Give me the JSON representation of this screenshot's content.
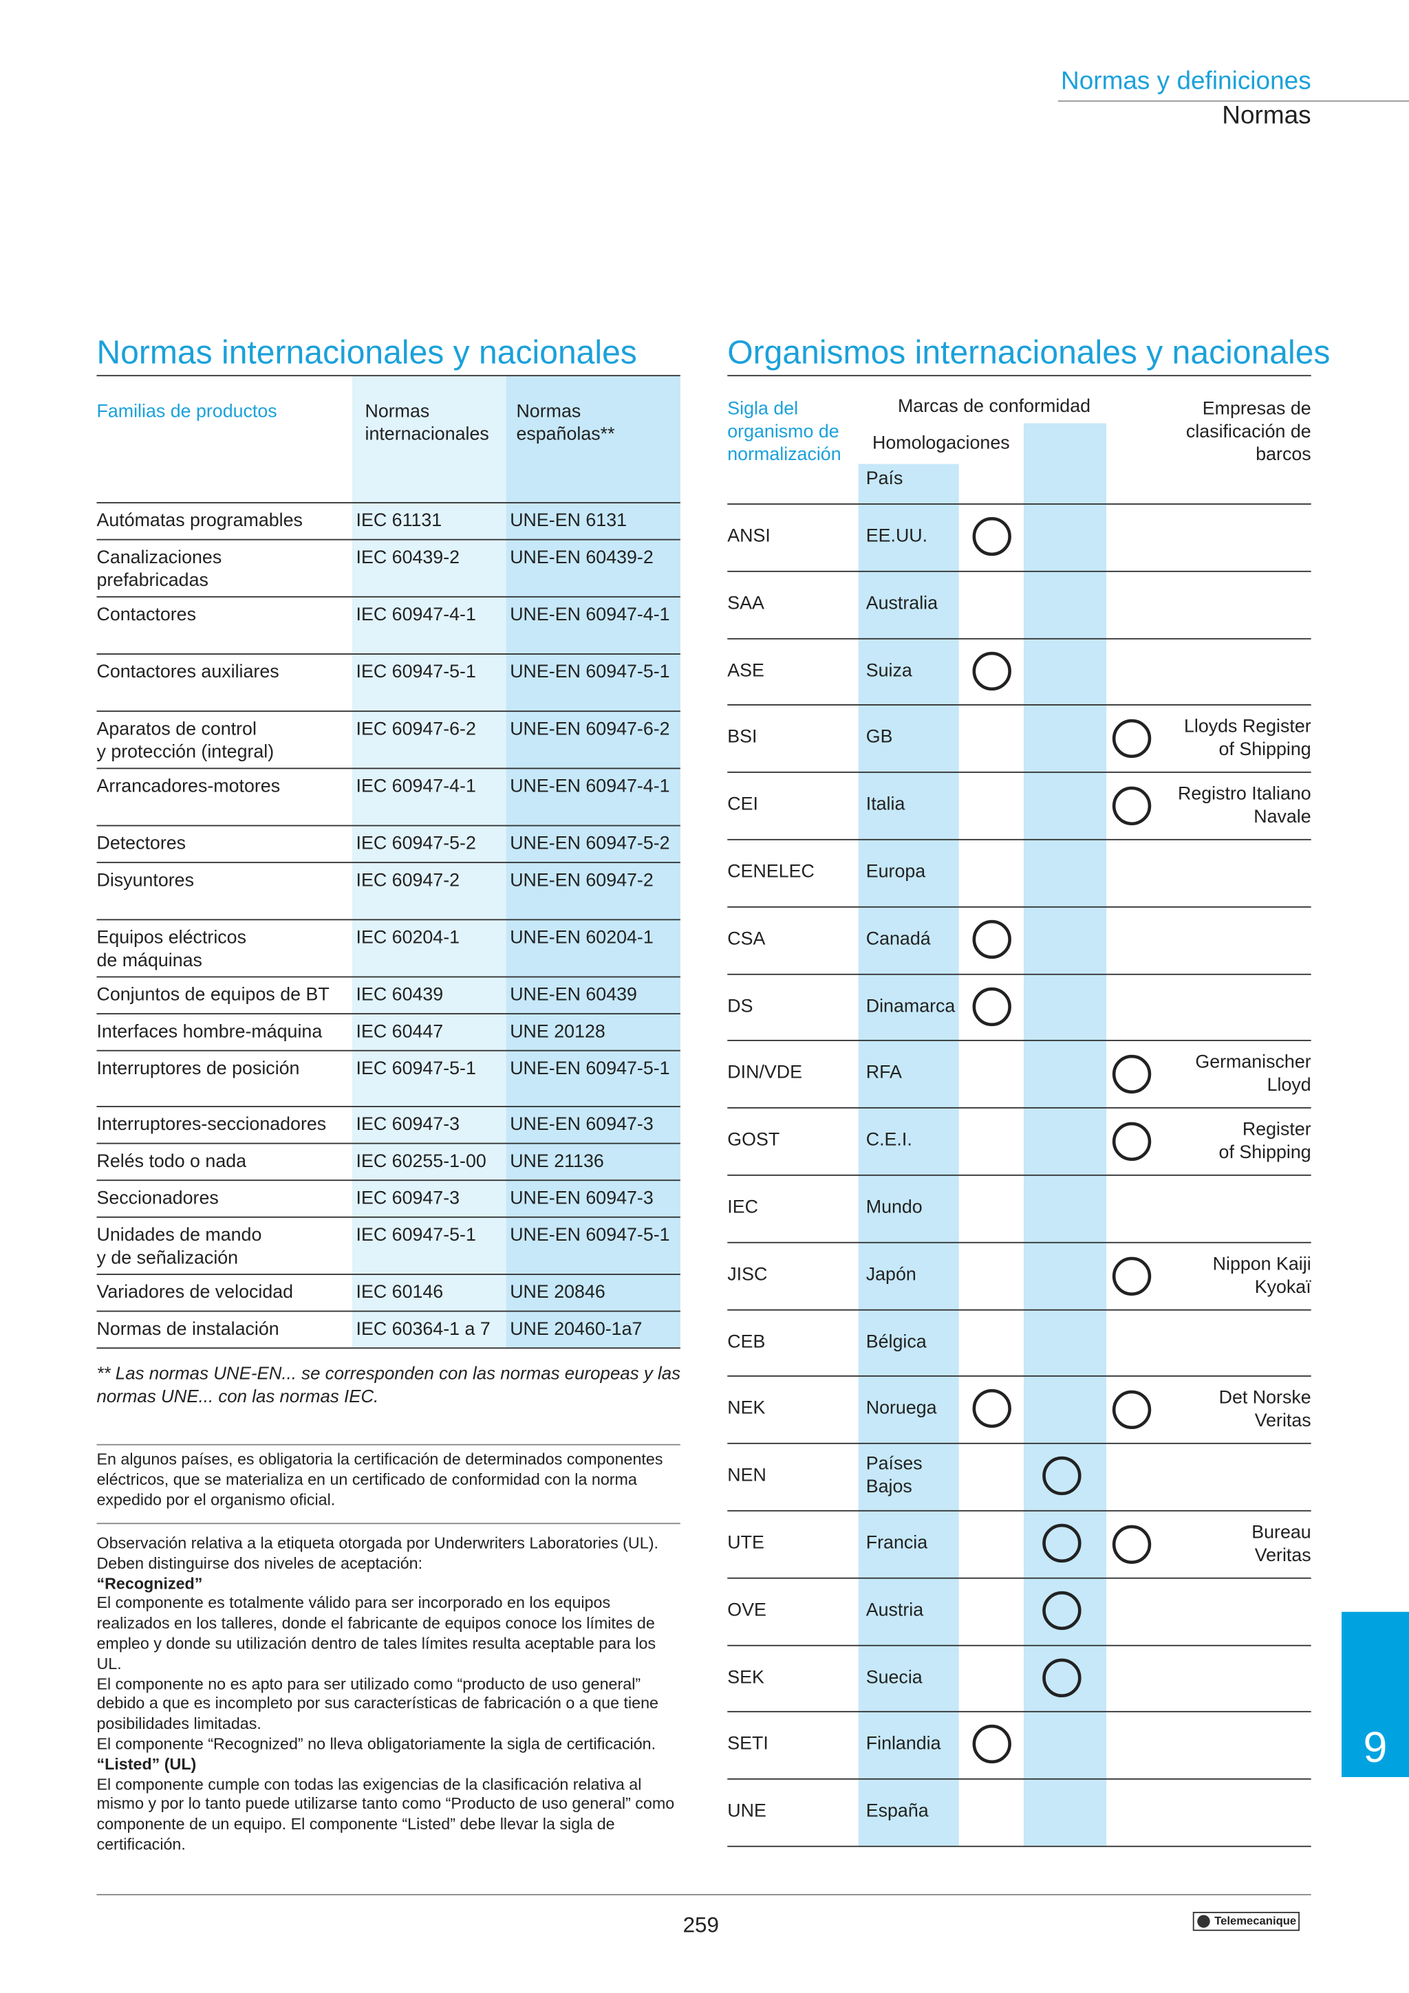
{
  "header": {
    "section": "Normas y definiciones",
    "subsection": "Normas"
  },
  "left": {
    "title": "Normas internacionales y nacionales",
    "columns": {
      "families": "Familias de productos",
      "international": [
        "Normas",
        "internacionales"
      ],
      "spanish": [
        "Normas",
        "españolas**"
      ]
    },
    "rows": [
      {
        "name": [
          "Autómatas programables"
        ],
        "international": "IEC 61131",
        "spanish": "UNE-EN 6131"
      },
      {
        "name": [
          "Canalizaciones",
          "prefabricadas"
        ],
        "international": "IEC 60439-2",
        "spanish": "UNE-EN 60439-2"
      },
      {
        "name": [
          "Contactores"
        ],
        "international": "IEC 60947-4-1",
        "spanish": "UNE-EN 60947-4-1"
      },
      {
        "name": [
          "Contactores auxiliares"
        ],
        "international": "IEC 60947-5-1",
        "spanish": "UNE-EN 60947-5-1"
      },
      {
        "name": [
          "Aparatos de control",
          "y protección (integral)"
        ],
        "international": "IEC 60947-6-2",
        "spanish": "UNE-EN 60947-6-2"
      },
      {
        "name": [
          "Arrancadores-motores"
        ],
        "international": "IEC 60947-4-1",
        "spanish": "UNE-EN 60947-4-1"
      },
      {
        "name": [
          "Detectores"
        ],
        "international": "IEC 60947-5-2",
        "spanish": "UNE-EN 60947-5-2"
      },
      {
        "name": [
          "Disyuntores"
        ],
        "international": "IEC 60947-2",
        "spanish": "UNE-EN 60947-2"
      },
      {
        "name": [
          "Equipos eléctricos",
          "de máquinas"
        ],
        "international": "IEC 60204-1",
        "spanish": "UNE-EN 60204-1"
      },
      {
        "name": [
          "Conjuntos de equipos de BT"
        ],
        "international": "IEC 60439",
        "spanish": "UNE-EN 60439"
      },
      {
        "name": [
          "Interfaces hombre-máquina"
        ],
        "international": "IEC 60447",
        "spanish": "UNE 20128"
      },
      {
        "name": [
          "Interruptores de posición"
        ],
        "international": "IEC 60947-5-1",
        "spanish": "UNE-EN 60947-5-1"
      },
      {
        "name": [
          "Interruptores-seccionadores"
        ],
        "international": "IEC 60947-3",
        "spanish": "UNE-EN 60947-3"
      },
      {
        "name": [
          "Relés todo o nada"
        ],
        "international": "IEC 60255-1-00",
        "spanish": "UNE 21136"
      },
      {
        "name": [
          "Seccionadores"
        ],
        "international": "IEC 60947-3",
        "spanish": "UNE-EN 60947-3"
      },
      {
        "name": [
          "Unidades de mando",
          "y de señalización"
        ],
        "international": "IEC 60947-5-1",
        "spanish": "UNE-EN 60947-5-1"
      },
      {
        "name": [
          "Variadores de velocidad"
        ],
        "international": "IEC 60146",
        "spanish": "UNE 20846"
      },
      {
        "name": [
          "Normas de instalación"
        ],
        "international": "IEC 60364-1 a 7",
        "spanish": "UNE 20460-1a7"
      }
    ],
    "footnote": "** Las normas UNE-EN... se corresponden con las normas europeas y las normas UNE... con las normas IEC.",
    "note1": "En algunos países, es obligatoria la certificación de determinados componentes eléctricos, que se materializa en un certificado de conformidad con la norma expedido por el organismo oficial.",
    "note2": [
      {
        "text": "Observación relativa a la etiqueta otorgada por Underwriters Laboratories (UL). Deben distinguirse dos niveles de aceptación:",
        "bold": false
      },
      {
        "text": "“Recognized”",
        "bold": true
      },
      {
        "text": "El componente es totalmente válido para ser incorporado en los equipos realizados en los talleres, donde el fabricante de equipos conoce los límites de empleo y donde su utilización dentro de tales límites resulta aceptable para los UL.",
        "bold": false
      },
      {
        "text": "El componente no es apto para ser utilizado como “producto de uso general” debido a que es incompleto por sus características de fabricación o a que tiene posibilidades limitadas.",
        "bold": false
      },
      {
        "text": "El componente “Recognized” no lleva obligatoriamente la sigla de certificación.",
        "bold": false
      },
      {
        "text": "“Listed” (UL)",
        "bold": true
      },
      {
        "text": "El componente cumple con todas las exigencias de la clasificación relativa al mismo y por lo tanto puede utilizarse tanto como “Producto de uso general” como componente de un equipo. El componente “Listed” debe llevar la sigla de certificación.",
        "bold": false
      }
    ]
  },
  "right": {
    "title": "Organismos internacionales y nacionales",
    "columns": {
      "acronym": [
        "Sigla del",
        "organismo de",
        "normalización"
      ],
      "marks": "Marcas de conformidad",
      "approvals": "Homologaciones",
      "country": "País",
      "ships": [
        "Empresas de",
        "clasificación de",
        "barcos"
      ]
    },
    "rows": [
      {
        "acronym": "ANSI",
        "country": [
          "EE.UU."
        ]
      },
      {
        "acronym": "SAA",
        "country": [
          "Australia"
        ]
      },
      {
        "acronym": "ASE",
        "country": [
          "Suiza"
        ]
      },
      {
        "acronym": "BSI",
        "country": [
          "GB"
        ],
        "ships": [
          "Lloyds Register",
          "of Shipping"
        ]
      },
      {
        "acronym": "CEI",
        "country": [
          "Italia"
        ],
        "ships": [
          "Registro Italiano",
          "Navale"
        ]
      },
      {
        "acronym": "CENELEC",
        "country": [
          "Europa"
        ]
      },
      {
        "acronym": "CSA",
        "country": [
          "Canadá"
        ]
      },
      {
        "acronym": "DS",
        "country": [
          "Dinamarca"
        ]
      },
      {
        "acronym": "DIN/VDE",
        "country": [
          "RFA"
        ],
        "ships": [
          "Germanischer",
          "Lloyd"
        ]
      },
      {
        "acronym": "GOST",
        "country": [
          "C.E.I."
        ],
        "ships": [
          "Register",
          "of Shipping"
        ]
      },
      {
        "acronym": "IEC",
        "country": [
          "Mundo"
        ]
      },
      {
        "acronym": "JISC",
        "country": [
          "Japón"
        ],
        "ships": [
          "Nippon Kaiji",
          "Kyokaï"
        ]
      },
      {
        "acronym": "CEB",
        "country": [
          "Bélgica"
        ]
      },
      {
        "acronym": "NEK",
        "country": [
          "Noruega"
        ],
        "ships": [
          "Det Norske",
          "Veritas"
        ]
      },
      {
        "acronym": "NEN",
        "country": [
          "Países",
          "Bajos"
        ]
      },
      {
        "acronym": "UTE",
        "country": [
          "Francia"
        ],
        "ships": [
          "Bureau",
          "Veritas"
        ]
      },
      {
        "acronym": "OVE",
        "country": [
          "Austria"
        ]
      },
      {
        "acronym": "SEK",
        "country": [
          "Suecia"
        ]
      },
      {
        "acronym": "SETI",
        "country": [
          "Finlandia"
        ]
      },
      {
        "acronym": "UNE",
        "country": [
          "España"
        ]
      }
    ]
  },
  "footer": {
    "page": "259",
    "brand": "Telemecanique",
    "tab": "9"
  }
}
